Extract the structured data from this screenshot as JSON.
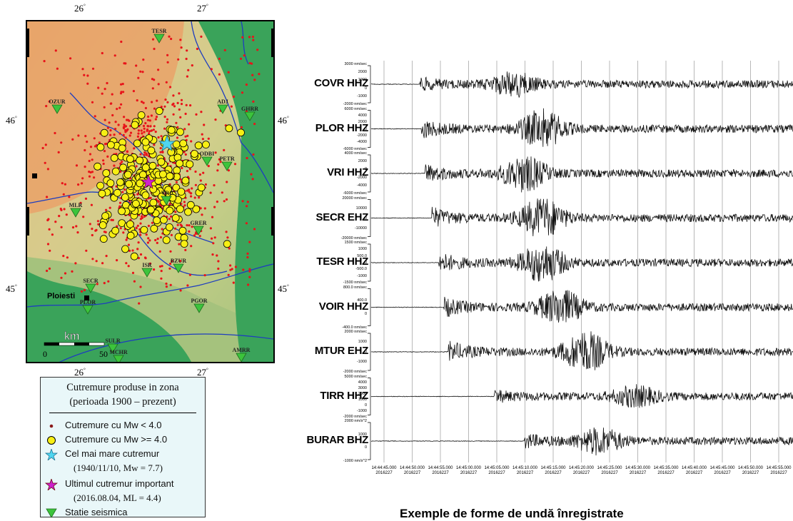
{
  "map": {
    "lon_labels_top": [
      "26",
      "27"
    ],
    "lon_labels_bottom": [
      "26",
      "27"
    ],
    "lat_labels_left": [
      "46",
      "45"
    ],
    "lat_labels_right": [
      "46",
      "45"
    ],
    "degree_symbol": "°",
    "city": "Ploiesti",
    "scale_unit": "km",
    "scale_ticks": [
      "0",
      "50"
    ],
    "stations": [
      "TESR",
      "OZUR",
      "ADJ",
      "GHRR",
      "PETR",
      "MLR",
      "GRER",
      "ISR",
      "BZUR",
      "SECR",
      "PLOR",
      "PGOR",
      "SULR",
      "VRI",
      "AMRR",
      "MCHR",
      "ODBI"
    ],
    "colors": {
      "small_quake": "#e8141a",
      "large_quake": "#f7ef14",
      "largest_star": "#4fd6f0",
      "recent_star": "#cc22cc",
      "station": "#3cc43c",
      "river": "#1e3dbf",
      "terrain_high": "#e8a46a",
      "terrain_mid": "#d8d18a",
      "terrain_low": "#3aa35a"
    }
  },
  "legend": {
    "title_line1": "Cutremure produse in zona",
    "title_line2": "(perioada 1900 – prezent)",
    "items": [
      {
        "label": "Cutremure cu Mw < 4.0",
        "icon": "small-red-dot"
      },
      {
        "label": "Cutremure cu Mw >= 4.0",
        "icon": "yellow-circle"
      },
      {
        "label": "Cel mai mare cutremur",
        "icon": "cyan-star",
        "sub": "(1940/11/10, Mw = 7.7)"
      },
      {
        "label": "Ultimul cutremur important",
        "icon": "magenta-star",
        "sub": "(2016.08.04, ML = 4.4)"
      },
      {
        "label": "Statie seismica",
        "icon": "green-triangle"
      }
    ]
  },
  "seismograms": {
    "traces": [
      {
        "name": "COVR HHZ",
        "scale": [
          "3000 nm/sec",
          "2000",
          "1000",
          "0",
          "-1000",
          "-2000 nm/sec"
        ]
      },
      {
        "name": "PLOR HHZ",
        "scale": [
          "6000 nm/sec",
          "4000",
          "2000",
          "0",
          "-2000",
          "-4000",
          "-6000 nm/sec"
        ]
      },
      {
        "name": "VRI HHZ",
        "scale": [
          "4000 nm/sec",
          "2000",
          "0",
          "-2000",
          "-4000",
          "-6000 nm/sec"
        ]
      },
      {
        "name": "SECR EHZ",
        "scale": [
          "20000 nm/sec",
          "10000",
          "0",
          "-10000",
          "-20000 nm/sec"
        ]
      },
      {
        "name": "TESR HHZ",
        "scale": [
          "1500 nm/sec",
          "1000",
          "500.0",
          "0",
          "-500.0",
          "-1000",
          "-1500 nm/sec"
        ]
      },
      {
        "name": "VOIR HHZ",
        "scale": [
          "800.0 nm/sec",
          "400.0",
          "0",
          "-400.0 nm/sec"
        ]
      },
      {
        "name": "MTUR EHZ",
        "scale": [
          "2000 nm/sec",
          "1000",
          "0",
          "-1000",
          "-2000 nm/sec"
        ]
      },
      {
        "name": "TIRR HHZ",
        "scale": [
          "5000 nm/sec",
          "4000",
          "3000",
          "2000",
          "1000",
          "0",
          "-1000",
          "-2000 nm/sec"
        ]
      },
      {
        "name": "BURAR BHZ",
        "scale": [
          "2000 nm/s^2",
          "1000",
          "0",
          "-1000 nm/s^2"
        ]
      }
    ],
    "time_labels": [
      "14:44:45.000",
      "14:44:50.000",
      "14:44:55.000",
      "14:45:00.000",
      "14:45:05.000",
      "14:45:10.000",
      "14:45:15.000",
      "14:45:20.000",
      "14:45:25.000",
      "14:45:30.000",
      "14:45:35.000",
      "14:45:40.000",
      "14:45:45.000",
      "14:45:50.000",
      "14:45:55.000"
    ],
    "date_label": "2016227",
    "caption": "Exemple de forme de undă înregistrate"
  }
}
